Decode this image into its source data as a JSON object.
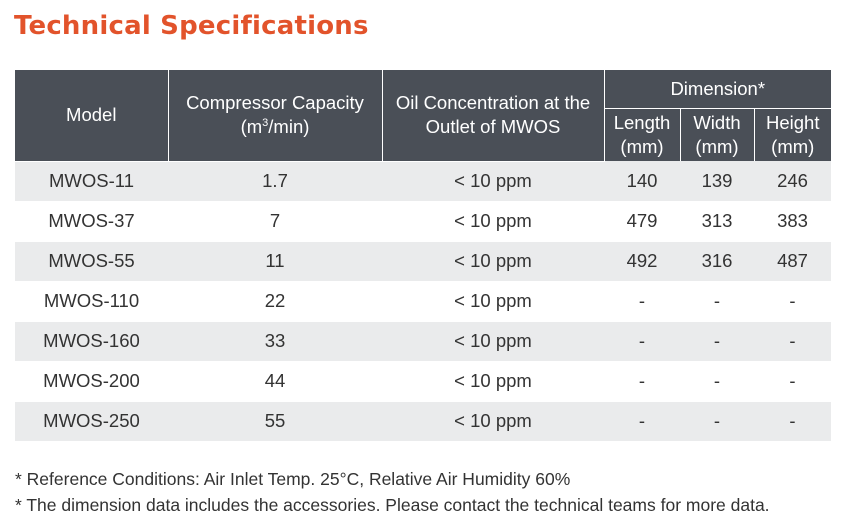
{
  "title": "Technical Specifications",
  "headers": {
    "model": "Model",
    "capacity_line1": "Compressor Capacity",
    "capacity_line2_pre": "(m",
    "capacity_line2_sup": "3",
    "capacity_line2_post": "/min)",
    "oil_line1": "Oil Concentration at the",
    "oil_line2": "Outlet of MWOS",
    "dimension": "Dimension*",
    "length_line1": "Length",
    "length_line2": "(mm)",
    "width_line1": "Width",
    "width_line2": "(mm)",
    "height_line1": "Height",
    "height_line2": "(mm)"
  },
  "rows": [
    {
      "model": "MWOS-11",
      "capacity": "1.7",
      "oil": "< 10 ppm",
      "length": "140",
      "width": "139",
      "height": "246"
    },
    {
      "model": "MWOS-37",
      "capacity": "7",
      "oil": "< 10 ppm",
      "length": "479",
      "width": "313",
      "height": "383"
    },
    {
      "model": "MWOS-55",
      "capacity": "11",
      "oil": "< 10 ppm",
      "length": "492",
      "width": "316",
      "height": "487"
    },
    {
      "model": "MWOS-110",
      "capacity": "22",
      "oil": "< 10 ppm",
      "length": "-",
      "width": "-",
      "height": "-"
    },
    {
      "model": "MWOS-160",
      "capacity": "33",
      "oil": "< 10 ppm",
      "length": "-",
      "width": "-",
      "height": "-"
    },
    {
      "model": "MWOS-200",
      "capacity": "44",
      "oil": "< 10 ppm",
      "length": "-",
      "width": "-",
      "height": "-"
    },
    {
      "model": "MWOS-250",
      "capacity": "55",
      "oil": "< 10 ppm",
      "length": "-",
      "width": "-",
      "height": "-"
    }
  ],
  "notes": [
    "* Reference Conditions: Air Inlet Temp. 25°C, Relative Air Humidity 60%",
    "* The dimension data includes the accessories. Please contact the technical teams for more data."
  ],
  "colors": {
    "title": "#e2532b",
    "header_bg": "#4a4f57",
    "stripe": "#eaebec"
  }
}
